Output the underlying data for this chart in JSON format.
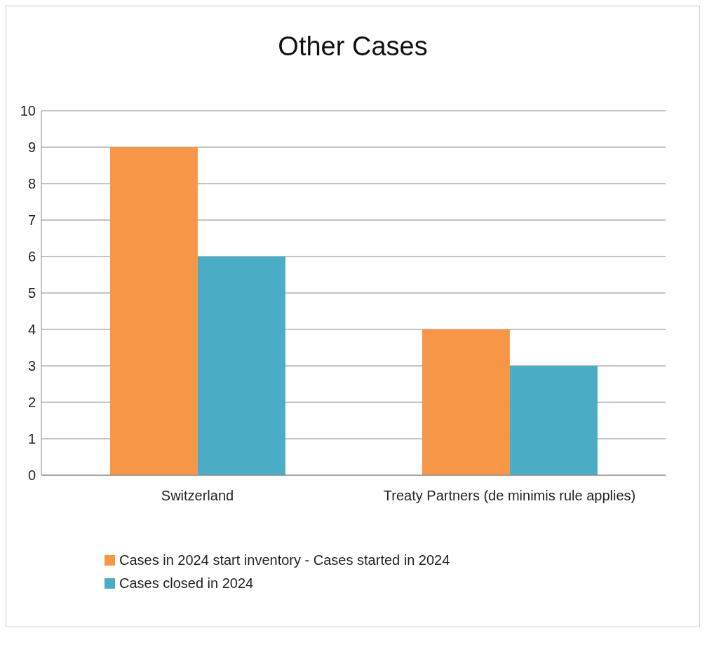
{
  "chart_data": {
    "type": "bar",
    "title": "Other Cases",
    "categories": [
      "Switzerland",
      "Treaty Partners (de minimis rule applies)"
    ],
    "series": [
      {
        "name": "Cases in 2024 start inventory - Cases started in 2024",
        "color": "#f79646",
        "values": [
          9,
          4
        ]
      },
      {
        "name": "Cases closed in 2024",
        "color": "#4bacc6",
        "values": [
          6,
          3
        ]
      }
    ],
    "ylim": [
      0,
      10
    ],
    "yticks": [
      0,
      1,
      2,
      3,
      4,
      5,
      6,
      7,
      8,
      9,
      10
    ],
    "grid": "y",
    "legend": "bottom"
  }
}
